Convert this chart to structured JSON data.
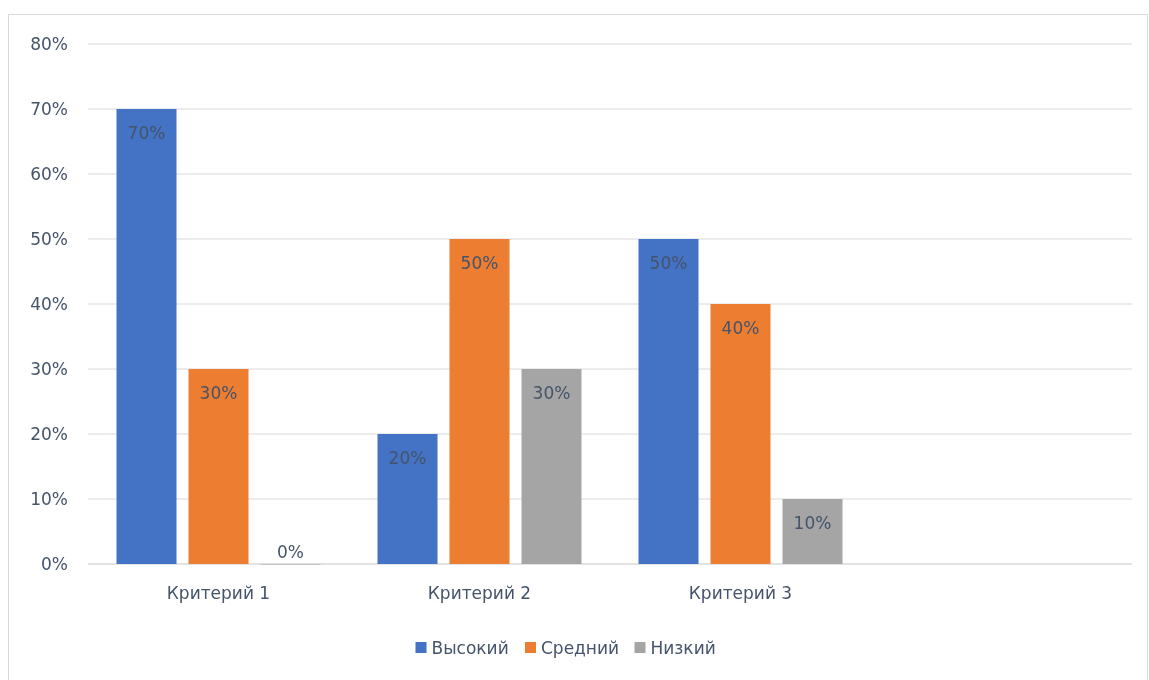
{
  "chart_data": {
    "type": "bar",
    "categories": [
      "Критерий 1",
      "Критерий 2",
      "Критерий 3",
      null
    ],
    "series": [
      {
        "name": "Высокий",
        "color": "#4472c4",
        "values": [
          70,
          20,
          50,
          null
        ],
        "value_labels": [
          "70%",
          "20%",
          "50%",
          null
        ]
      },
      {
        "name": "Средний",
        "color": "#ed7d31",
        "values": [
          30,
          50,
          40,
          null
        ],
        "value_labels": [
          "30%",
          "50%",
          "40%",
          null
        ]
      },
      {
        "name": "Низкий",
        "color": "#a5a5a5",
        "values": [
          0,
          30,
          10,
          null
        ],
        "value_labels": [
          "0%",
          "30%",
          "10%",
          null
        ]
      }
    ],
    "ylim": [
      0,
      80
    ],
    "yticks": [
      {
        "value": 0,
        "label": "0%"
      },
      {
        "value": 10,
        "label": "10%"
      },
      {
        "value": 20,
        "label": "20%"
      },
      {
        "value": 30,
        "label": "30%"
      },
      {
        "value": 40,
        "label": "40%"
      },
      {
        "value": 50,
        "label": "50%"
      },
      {
        "value": 60,
        "label": "60%"
      },
      {
        "value": 70,
        "label": "70%"
      },
      {
        "value": 80,
        "label": "80%"
      }
    ],
    "grid": "y",
    "legend": "bottom"
  }
}
